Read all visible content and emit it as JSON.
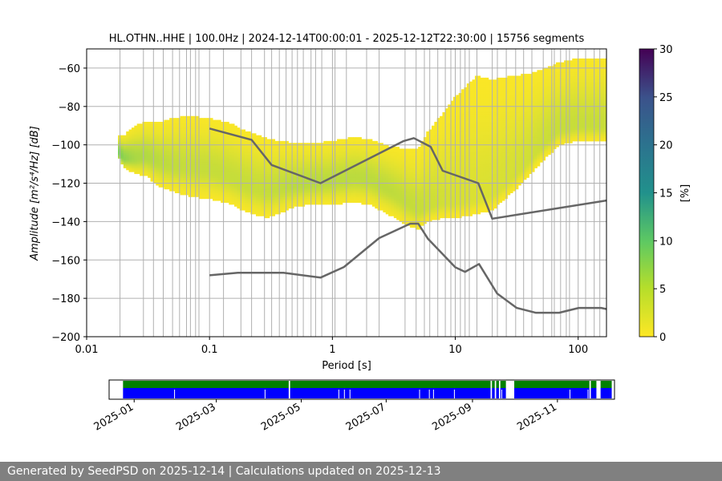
{
  "chart_data": {
    "type": "heatmap",
    "title": "HL.OTHN..HHE | 100.0Hz | 2024-12-14T00:00:01 - 2025-12-12T22:30:00 | 15756 segments",
    "xlabel": "Period [s]",
    "ylabel": "Amplitude [m²/s⁴/Hz] [dB]",
    "xscale": "log",
    "xlim": [
      0.01,
      170
    ],
    "ylim": [
      -200,
      -50
    ],
    "xticks": [
      {
        "v": 0.01,
        "label": "0.01"
      },
      {
        "v": 0.1,
        "label": "0.1"
      },
      {
        "v": 1,
        "label": "1"
      },
      {
        "v": 10,
        "label": "10"
      },
      {
        "v": 100,
        "label": "100"
      }
    ],
    "yticks": [
      -60,
      -80,
      -100,
      -120,
      -140,
      -160,
      -180,
      -200
    ],
    "yticklabels": [
      "−60",
      "−80",
      "−100",
      "−120",
      "−140",
      "−160",
      "−180",
      "−200"
    ],
    "grid": true,
    "colorbar": {
      "label": "[%]",
      "range": [
        0,
        30
      ],
      "ticks": [
        0,
        5,
        10,
        15,
        20,
        25,
        30
      ],
      "colormap": [
        "#fde725",
        "#5ec962",
        "#21918c",
        "#3b528b",
        "#440154"
      ]
    },
    "grid_periods": [
      0.0187,
      0.029,
      0.035,
      0.042,
      0.05,
      0.057,
      0.065,
      0.07,
      0.077,
      0.082,
      0.1,
      0.13,
      0.18,
      0.22,
      0.28,
      0.32,
      0.37,
      0.42,
      0.47,
      0.52,
      0.58,
      0.67,
      0.73,
      0.82,
      1.0,
      1.05,
      1.3,
      1.9,
      2.4,
      3.9,
      4.8,
      5.6,
      6.2,
      7.2,
      8.3,
      9.2,
      10,
      11,
      12,
      13,
      15,
      20,
      22,
      26,
      31,
      36,
      42,
      52,
      61,
      64,
      72,
      80,
      85,
      100,
      115,
      135,
      150
    ],
    "psd_distribution": {
      "mode_curve": {
        "x": [
          0.018,
          0.02,
          0.025,
          0.03,
          0.04,
          0.05,
          0.07,
          0.1,
          0.15,
          0.2,
          0.25,
          0.3,
          0.4,
          0.5,
          0.7,
          1.0,
          1.5,
          2.0,
          3.0,
          4.0,
          5.0,
          6.0,
          8.0,
          10,
          15,
          20,
          30,
          40,
          50,
          70,
          100,
          170
        ],
        "y": [
          -103,
          -107,
          -107,
          -106,
          -109,
          -111,
          -112,
          -113,
          -117,
          -121,
          -123,
          -124,
          -122,
          -121,
          -120,
          -119,
          -117,
          -118,
          -124,
          -130,
          -134,
          -132,
          -130,
          -130,
          -128,
          -126,
          -116,
          -108,
          -101,
          -92,
          -90,
          -90
        ]
      },
      "spread_lower": [
        3,
        5,
        8,
        10,
        13,
        13,
        15,
        15,
        14,
        14,
        14,
        14,
        13,
        11,
        11,
        12,
        13,
        13,
        13,
        12,
        10,
        8,
        8,
        8,
        8,
        8,
        8,
        8,
        8,
        8,
        8,
        8
      ],
      "spread_upper": [
        8,
        12,
        17,
        18,
        21,
        25,
        27,
        27,
        28,
        28,
        28,
        27,
        24,
        22,
        21,
        21,
        21,
        21,
        23,
        28,
        32,
        39,
        47,
        55,
        64,
        60,
        52,
        45,
        40,
        35,
        35,
        35
      ]
    },
    "series": [
      {
        "name": "NHNM",
        "x": [
          0.1,
          0.22,
          0.32,
          0.8,
          3.8,
          4.6,
          6.3,
          7.9,
          15.4,
          20,
          170
        ],
        "y": [
          -91.5,
          -97.4,
          -110.5,
          -120,
          -98,
          -96.5,
          -101,
          -113.5,
          -120,
          -138.5,
          -129
        ]
      },
      {
        "name": "NLNM",
        "x": [
          0.1,
          0.17,
          0.4,
          0.8,
          1.24,
          2.4,
          4.3,
          5.0,
          6.0,
          10.0,
          12.0,
          15.6,
          21.9,
          31.6,
          45,
          70,
          101,
          154,
          170
        ],
        "y": [
          -168,
          -166.7,
          -166.7,
          -169.2,
          -163.7,
          -148.6,
          -141.1,
          -141.1,
          -149,
          -163.8,
          -166.2,
          -162.1,
          -177.5,
          -185,
          -187.5,
          -187.5,
          -185,
          -185,
          -185.6
        ]
      }
    ]
  },
  "availability": {
    "tick_labels": [
      "2025-01",
      "2025-03",
      "2025-05",
      "2025-07",
      "2025-09",
      "2025-11"
    ],
    "timeline_start": "2024-12-14",
    "timeline_end": "2025-12-12",
    "data_window": [
      "2024-12-24",
      "2025-12-10"
    ],
    "data_color": "#008000",
    "gap_color": "#0000ff",
    "gaps": [
      [
        "2025-04-22",
        "2025-04-23"
      ],
      [
        "2025-09-14",
        "2025-09-15"
      ],
      [
        "2025-09-17",
        "2025-09-18"
      ],
      [
        "2025-09-20",
        "2025-09-21"
      ],
      [
        "2025-09-25",
        "2025-10-01"
      ],
      [
        "2025-11-24",
        "2025-11-25"
      ],
      [
        "2025-11-29",
        "2025-12-02"
      ]
    ],
    "breaks": [
      "2025-01-30",
      "2025-04-05",
      "2025-05-28",
      "2025-06-01",
      "2025-06-05",
      "2025-07-25",
      "2025-08-01",
      "2025-08-04",
      "2025-08-19",
      "2025-09-22",
      "2025-09-27",
      "2025-11-10",
      "2025-11-23"
    ]
  },
  "footer": {
    "text": "Generated by SeedPSD on 2025-12-14 | Calculations updated on 2025-12-13"
  }
}
